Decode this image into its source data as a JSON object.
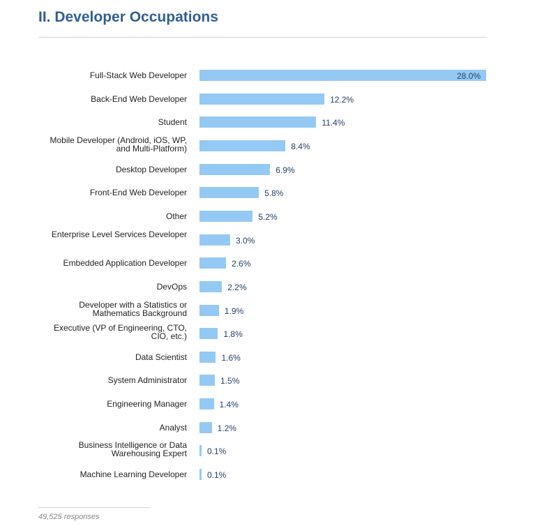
{
  "title": "II. Developer Occupations",
  "footer": "49,525 responses",
  "colors": {
    "bar": "#94c9f4",
    "title": "#2f5f93",
    "value_text": "#243f66"
  },
  "chart_data": {
    "type": "bar",
    "orientation": "horizontal",
    "categories": [
      "Full-Stack Web Developer",
      "Back-End Web Developer",
      "Student",
      "Mobile Developer (Android, iOS, WP, and Multi-Platform)",
      "Desktop Developer",
      "Front-End Web Developer",
      "Other",
      "Enterprise Level Services Developer",
      "Embedded Application Developer",
      "DevOps",
      "Developer with a Statistics or Mathematics Background",
      "Executive (VP of Engineering, CTO, CIO, etc.)",
      "Data Scientist",
      "System Administrator",
      "Engineering Manager",
      "Analyst",
      "Business Intelligence or Data Warehousing Expert",
      "Machine Learning Developer"
    ],
    "values": [
      28.0,
      12.2,
      11.4,
      8.4,
      6.9,
      5.8,
      5.2,
      3.0,
      2.6,
      2.2,
      1.9,
      1.8,
      1.6,
      1.5,
      1.4,
      1.2,
      0.1,
      0.1
    ],
    "value_labels": [
      "28.0%",
      "12.2%",
      "11.4%",
      "8.4%",
      "6.9%",
      "5.8%",
      "5.2%",
      "3.0%",
      "2.6%",
      "2.2%",
      "1.9%",
      "1.8%",
      "1.6%",
      "1.5%",
      "1.4%",
      "1.2%",
      "0.1%",
      "0.1%"
    ],
    "unit": "%",
    "xlim": [
      0,
      28
    ],
    "grid": false
  }
}
